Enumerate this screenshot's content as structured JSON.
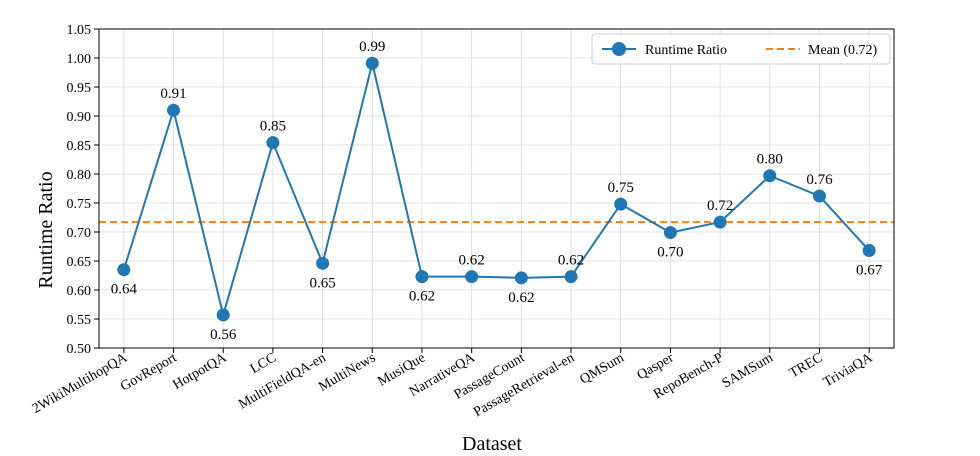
{
  "chart_data": {
    "type": "line",
    "title": "",
    "xlabel": "Dataset",
    "ylabel": "Runtime Ratio",
    "categories": [
      "2WikiMultihopQA",
      "GovReport",
      "HotpotQA",
      "LCC",
      "MultiFieldQA-en",
      "MultiNews",
      "MusiQue",
      "NarrativeQA",
      "PassageCount",
      "PassageRetrieval-en",
      "QMSum",
      "Qasper",
      "RepoBench-P",
      "SAMSum",
      "TREC",
      "TriviaQA"
    ],
    "series": [
      {
        "name": "Runtime Ratio",
        "color": "#1f77b4",
        "values": [
          0.635,
          0.91,
          0.557,
          0.854,
          0.646,
          0.991,
          0.623,
          0.623,
          0.621,
          0.623,
          0.748,
          0.699,
          0.717,
          0.797,
          0.762,
          0.668
        ]
      }
    ],
    "data_labels": [
      "0.64",
      "0.91",
      "0.56",
      "0.85",
      "0.65",
      "0.99",
      "0.62",
      "0.62",
      "0.62",
      "0.62",
      "0.75",
      "0.70",
      "0.72",
      "0.80",
      "0.76",
      "0.67"
    ],
    "reference_line": {
      "name": "Mean (0.72)",
      "value": 0.717,
      "color": "#ff7f0e",
      "style": "dashed"
    },
    "ylim": [
      0.5,
      1.05
    ],
    "yticks": [
      "0.50",
      "0.55",
      "0.60",
      "0.65",
      "0.70",
      "0.75",
      "0.80",
      "0.85",
      "0.90",
      "0.95",
      "1.00",
      "1.05"
    ],
    "grid": true,
    "legend_position": "top-right"
  }
}
